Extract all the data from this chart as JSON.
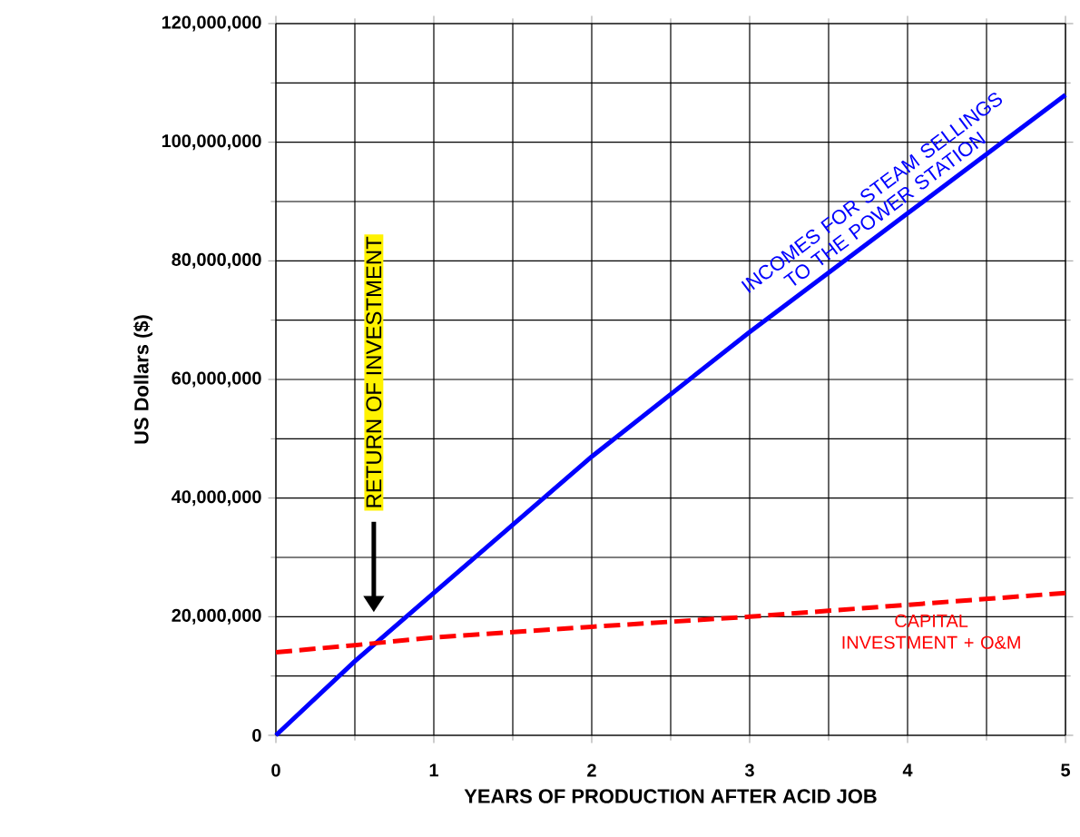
{
  "chart_data": {
    "type": "line",
    "xlabel": "YEARS OF PRODUCTION AFTER ACID JOB",
    "ylabel": "US Dollars ($)",
    "x": [
      0,
      0.5,
      1,
      2,
      3,
      4,
      5
    ],
    "series": [
      {
        "name": "INCOMES FOR STEAM SELLINGS TO THE POWER STATION",
        "color": "#0000ff",
        "line_style": "solid",
        "values": [
          0,
          12500000,
          24000000,
          47000000,
          68000000,
          88000000,
          108000000
        ]
      },
      {
        "name": "CAPITAL INVESTMENT + O&M",
        "color": "#ff0000",
        "line_style": "dashed",
        "values": [
          14000000,
          15200000,
          16500000,
          18300000,
          20000000,
          22000000,
          24000000
        ]
      }
    ],
    "xlim": [
      0,
      5
    ],
    "xticks": [
      0,
      1,
      2,
      3,
      4,
      5
    ],
    "ylim": [
      0,
      120000000
    ],
    "yticks": [
      0,
      {
        "value": 20000000,
        "label": "20,000,000"
      },
      {
        "value": 40000000,
        "label": "40,000,000"
      },
      {
        "value": 60000000,
        "label": "60,000,000"
      },
      {
        "value": 80000000,
        "label": "80,000,000"
      },
      {
        "value": 100000000,
        "label": "100,000,000"
      },
      {
        "value": 120000000,
        "label": "120,000,000"
      }
    ],
    "grid": true,
    "legend": false,
    "marker": "none",
    "annotations": [
      "RETURN OF INVESTMENT"
    ]
  }
}
